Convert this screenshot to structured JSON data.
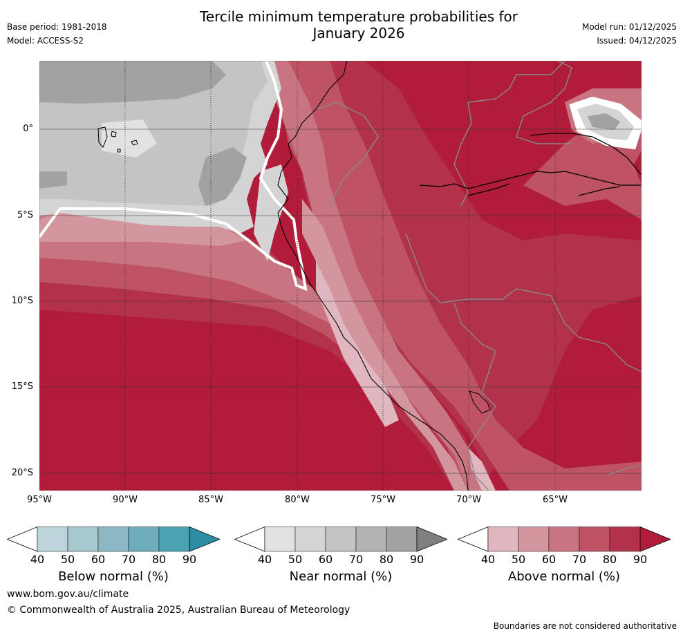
{
  "header": {
    "title_line1": "Tercile minimum temperature probabilities for",
    "title_line2": "January 2026",
    "base_period": "Base period: 1981-2018",
    "model": "Model: ACCESS-S2",
    "model_run": "Model run: 01/12/2025",
    "issued": "Issued: 04/12/2025"
  },
  "map": {
    "lat_labels": [
      "0°",
      "5°S",
      "10°S",
      "15°S",
      "20°S"
    ],
    "lon_labels": [
      "95°W",
      "90°W",
      "85°W",
      "80°W",
      "75°W",
      "70°W",
      "65°W"
    ]
  },
  "legend": {
    "below": {
      "title": "Below normal (%)",
      "ticks": [
        "40",
        "50",
        "60",
        "70",
        "80",
        "90"
      ],
      "colors": [
        "#ffffff",
        "#bcd5da",
        "#a7c8cf",
        "#8bb8c3",
        "#6eaebb",
        "#4aa2b2",
        "#2b8ea3"
      ]
    },
    "near": {
      "title": "Near normal (%)",
      "ticks": [
        "40",
        "50",
        "60",
        "70",
        "80",
        "90"
      ],
      "colors": [
        "#ffffff",
        "#e2e2e2",
        "#d4d4d4",
        "#c4c4c4",
        "#b3b3b3",
        "#a2a2a2",
        "#7f7f7f"
      ]
    },
    "above": {
      "title": "Above normal (%)",
      "ticks": [
        "40",
        "50",
        "60",
        "70",
        "80",
        "90"
      ],
      "colors": [
        "#ffffff",
        "#e0b7bf",
        "#d3969f",
        "#c97581",
        "#bd5365",
        "#b2324b",
        "#b01c3a"
      ]
    }
  },
  "footer": {
    "url": "www.bom.gov.au/climate",
    "copyright": "© Commonwealth of Australia 2025, Australian Bureau of Meteorology",
    "disclaimer": "Boundaries are not considered authoritative"
  }
}
